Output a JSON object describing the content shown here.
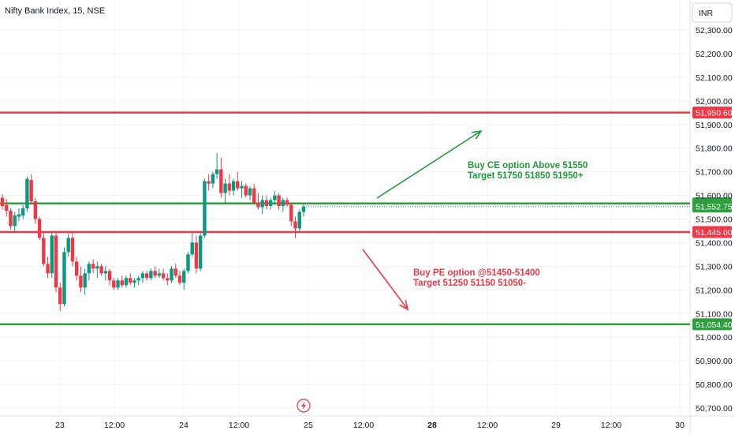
{
  "header": {
    "symbol_title": "Nifty Bank Index, 15, NSE"
  },
  "currency_button": "INR",
  "colors": {
    "up": "#089981",
    "down": "#f23645",
    "level_red": "#f23645",
    "level_green": "#2e9e3e",
    "annotation_green": "#1f9a3a",
    "annotation_red": "#f23645"
  },
  "chart_data": {
    "type": "candlestick",
    "title": "Nifty Bank Index, 15, NSE",
    "ylim": [
      50660,
      52380
    ],
    "y_ticks": [
      "52,300.00",
      "52,200.00",
      "52,100.00",
      "52,000.00",
      "51,900.00",
      "51,800.00",
      "51,700.00",
      "51,600.00",
      "51,500.00",
      "51,400.00",
      "51,300.00",
      "51,200.00",
      "51,100.00",
      "51,000.00",
      "50,900.00",
      "50,800.00",
      "50,700.00"
    ],
    "x_ticks": [
      {
        "label": "23",
        "bold": false
      },
      {
        "label": "12:00",
        "bold": false
      },
      {
        "label": "24",
        "bold": false
      },
      {
        "label": "12:00",
        "bold": false
      },
      {
        "label": "25",
        "bold": false
      },
      {
        "label": "12:00",
        "bold": false
      },
      {
        "label": "28",
        "bold": true
      },
      {
        "label": "12:00",
        "bold": false
      },
      {
        "label": "29",
        "bold": false
      },
      {
        "label": "12:00",
        "bold": false
      },
      {
        "label": "30",
        "bold": false
      }
    ],
    "horizontal_levels": [
      {
        "value": 51950.6,
        "label": "51,950.60",
        "color": "red"
      },
      {
        "value": 51565.9,
        "label": "51,565.90",
        "color": "green"
      },
      {
        "value": 51445.0,
        "label": "51,445.00",
        "color": "red"
      },
      {
        "value": 51054.4,
        "label": "51,054.40",
        "color": "green"
      }
    ],
    "current_price_tag": {
      "value": 51552.75,
      "label": "51,552.75"
    },
    "candles": [
      {
        "o": 51590,
        "h": 51605,
        "l": 51540,
        "c": 51555
      },
      {
        "o": 51560,
        "h": 51585,
        "l": 51510,
        "c": 51535
      },
      {
        "o": 51535,
        "h": 51545,
        "l": 51455,
        "c": 51470
      },
      {
        "o": 51470,
        "h": 51530,
        "l": 51440,
        "c": 51515
      },
      {
        "o": 51510,
        "h": 51545,
        "l": 51490,
        "c": 51520
      },
      {
        "o": 51515,
        "h": 51560,
        "l": 51500,
        "c": 51545
      },
      {
        "o": 51545,
        "h": 51680,
        "l": 51530,
        "c": 51670
      },
      {
        "o": 51665,
        "h": 51690,
        "l": 51560,
        "c": 51575
      },
      {
        "o": 51575,
        "h": 51590,
        "l": 51480,
        "c": 51500
      },
      {
        "o": 51500,
        "h": 51510,
        "l": 51410,
        "c": 51420
      },
      {
        "o": 51420,
        "h": 51440,
        "l": 51300,
        "c": 51310
      },
      {
        "o": 51310,
        "h": 51340,
        "l": 51250,
        "c": 51270
      },
      {
        "o": 51270,
        "h": 51450,
        "l": 51250,
        "c": 51430
      },
      {
        "o": 51430,
        "h": 51450,
        "l": 51190,
        "c": 51210
      },
      {
        "o": 51210,
        "h": 51230,
        "l": 51110,
        "c": 51140
      },
      {
        "o": 51140,
        "h": 51380,
        "l": 51130,
        "c": 51360
      },
      {
        "o": 51360,
        "h": 51440,
        "l": 51340,
        "c": 51420
      },
      {
        "o": 51420,
        "h": 51450,
        "l": 51300,
        "c": 51320
      },
      {
        "o": 51320,
        "h": 51340,
        "l": 51240,
        "c": 51260
      },
      {
        "o": 51260,
        "h": 51300,
        "l": 51190,
        "c": 51210
      },
      {
        "o": 51210,
        "h": 51290,
        "l": 51180,
        "c": 51270
      },
      {
        "o": 51270,
        "h": 51320,
        "l": 51240,
        "c": 51310
      },
      {
        "o": 51310,
        "h": 51330,
        "l": 51270,
        "c": 51290
      },
      {
        "o": 51290,
        "h": 51320,
        "l": 51250,
        "c": 51300
      },
      {
        "o": 51300,
        "h": 51310,
        "l": 51260,
        "c": 51270
      },
      {
        "o": 51270,
        "h": 51300,
        "l": 51240,
        "c": 51280
      },
      {
        "o": 51280,
        "h": 51290,
        "l": 51220,
        "c": 51240
      },
      {
        "o": 51240,
        "h": 51250,
        "l": 51200,
        "c": 51210
      },
      {
        "o": 51210,
        "h": 51250,
        "l": 51200,
        "c": 51240
      },
      {
        "o": 51240,
        "h": 51260,
        "l": 51210,
        "c": 51220
      },
      {
        "o": 51220,
        "h": 51260,
        "l": 51210,
        "c": 51250
      },
      {
        "o": 51250,
        "h": 51270,
        "l": 51220,
        "c": 51230
      },
      {
        "o": 51230,
        "h": 51250,
        "l": 51210,
        "c": 51240
      },
      {
        "o": 51240,
        "h": 51260,
        "l": 51220,
        "c": 51250
      },
      {
        "o": 51250,
        "h": 51280,
        "l": 51230,
        "c": 51270
      },
      {
        "o": 51270,
        "h": 51280,
        "l": 51240,
        "c": 51250
      },
      {
        "o": 51250,
        "h": 51290,
        "l": 51240,
        "c": 51280
      },
      {
        "o": 51280,
        "h": 51300,
        "l": 51250,
        "c": 51260
      },
      {
        "o": 51260,
        "h": 51290,
        "l": 51250,
        "c": 51270
      },
      {
        "o": 51270,
        "h": 51290,
        "l": 51240,
        "c": 51250
      },
      {
        "o": 51250,
        "h": 51270,
        "l": 51220,
        "c": 51240
      },
      {
        "o": 51240,
        "h": 51300,
        "l": 51230,
        "c": 51290
      },
      {
        "o": 51290,
        "h": 51310,
        "l": 51250,
        "c": 51260
      },
      {
        "o": 51260,
        "h": 51280,
        "l": 51220,
        "c": 51230
      },
      {
        "o": 51230,
        "h": 51290,
        "l": 51200,
        "c": 51280
      },
      {
        "o": 51280,
        "h": 51360,
        "l": 51270,
        "c": 51350
      },
      {
        "o": 51350,
        "h": 51440,
        "l": 51340,
        "c": 51400
      },
      {
        "o": 51400,
        "h": 51430,
        "l": 51270,
        "c": 51290
      },
      {
        "o": 51290,
        "h": 51440,
        "l": 51280,
        "c": 51430
      },
      {
        "o": 51430,
        "h": 51670,
        "l": 51420,
        "c": 51660
      },
      {
        "o": 51660,
        "h": 51690,
        "l": 51620,
        "c": 51650
      },
      {
        "o": 51650,
        "h": 51700,
        "l": 51630,
        "c": 51690
      },
      {
        "o": 51690,
        "h": 51780,
        "l": 51670,
        "c": 51710
      },
      {
        "o": 51710,
        "h": 51760,
        "l": 51590,
        "c": 51610
      },
      {
        "o": 51610,
        "h": 51670,
        "l": 51570,
        "c": 51650
      },
      {
        "o": 51650,
        "h": 51690,
        "l": 51600,
        "c": 51620
      },
      {
        "o": 51620,
        "h": 51670,
        "l": 51600,
        "c": 51660
      },
      {
        "o": 51660,
        "h": 51700,
        "l": 51620,
        "c": 51630
      },
      {
        "o": 51630,
        "h": 51660,
        "l": 51590,
        "c": 51640
      },
      {
        "o": 51640,
        "h": 51650,
        "l": 51590,
        "c": 51600
      },
      {
        "o": 51600,
        "h": 51640,
        "l": 51580,
        "c": 51630
      },
      {
        "o": 51630,
        "h": 51650,
        "l": 51560,
        "c": 51570
      },
      {
        "o": 51570,
        "h": 51610,
        "l": 51540,
        "c": 51550
      },
      {
        "o": 51550,
        "h": 51600,
        "l": 51520,
        "c": 51580
      },
      {
        "o": 51580,
        "h": 51600,
        "l": 51540,
        "c": 51555
      },
      {
        "o": 51555,
        "h": 51590,
        "l": 51540,
        "c": 51580
      },
      {
        "o": 51580,
        "h": 51620,
        "l": 51560,
        "c": 51600
      },
      {
        "o": 51600,
        "h": 51610,
        "l": 51540,
        "c": 51555
      },
      {
        "o": 51555,
        "h": 51590,
        "l": 51530,
        "c": 51580
      },
      {
        "o": 51580,
        "h": 51590,
        "l": 51550,
        "c": 51560
      },
      {
        "o": 51560,
        "h": 51570,
        "l": 51470,
        "c": 51490
      },
      {
        "o": 51490,
        "h": 51510,
        "l": 51420,
        "c": 51460
      },
      {
        "o": 51460,
        "h": 51540,
        "l": 51440,
        "c": 51530
      },
      {
        "o": 51530,
        "h": 51570,
        "l": 51510,
        "c": 51553
      }
    ],
    "annotations": [
      {
        "lines": [
          "Buy CE option Above 51550",
          "Target 51750 51850 51950+"
        ],
        "color": "green"
      },
      {
        "lines": [
          "Buy PE option @51450-51400",
          "Target 51250 51150 51050-"
        ],
        "color": "red"
      }
    ]
  }
}
